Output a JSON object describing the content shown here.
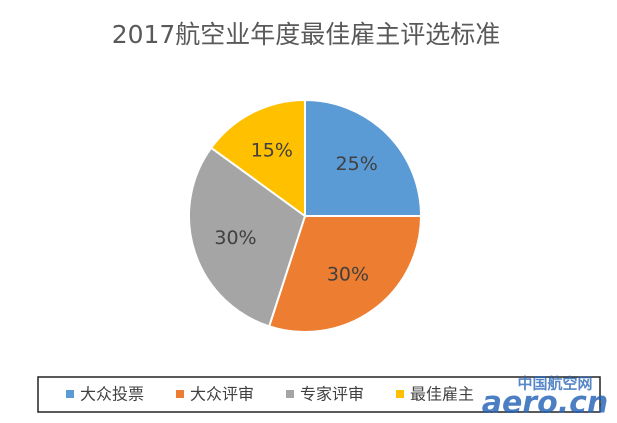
{
  "chart_data": {
    "type": "pie",
    "title": "2017航空业年度最佳雇主评选标准",
    "categories": [
      "大众投票",
      "大众评审",
      "专家评审",
      "最佳雇主"
    ],
    "values": [
      25,
      30,
      30,
      15
    ],
    "value_labels": [
      "25%",
      "30%",
      "30%",
      "15%"
    ],
    "colors": [
      "#5b9bd5",
      "#ed7d31",
      "#a5a5a5",
      "#ffc000"
    ],
    "legend": "bottom"
  },
  "watermark": {
    "top": "中国航空网",
    "main": "aero.cn"
  }
}
